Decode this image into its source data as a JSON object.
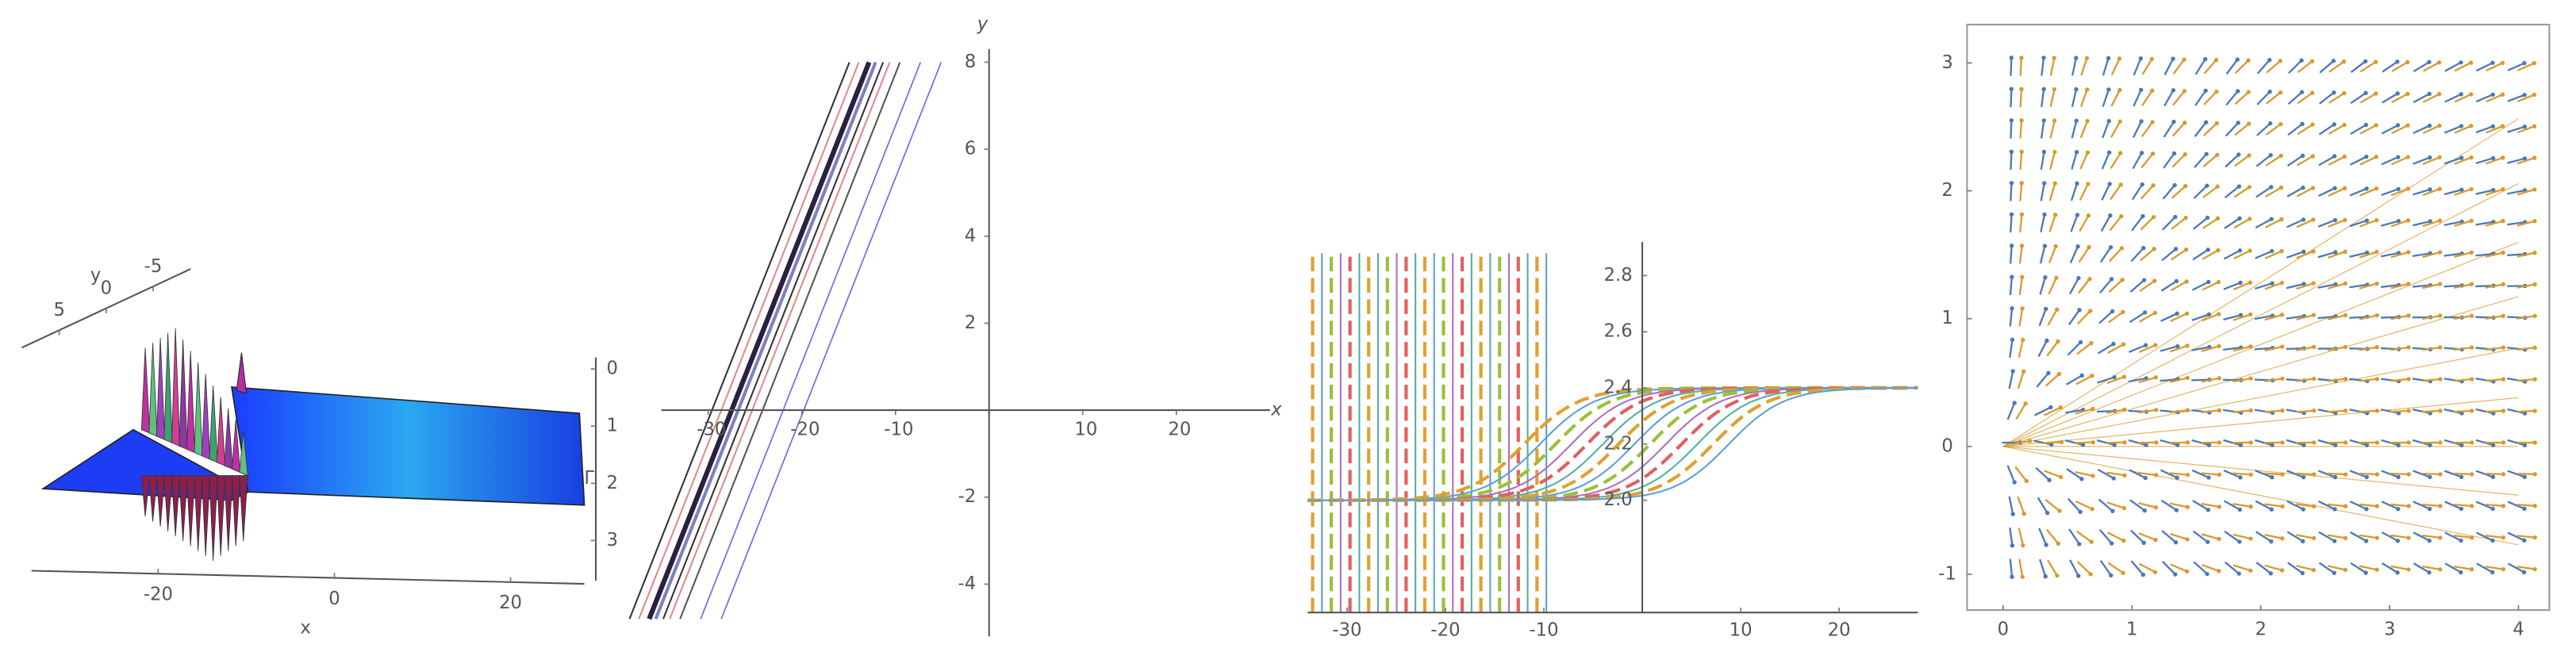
{
  "chart_data": [
    {
      "type": "surface3d",
      "xlabel": "x",
      "ylabel": "y",
      "zlabel": "Γ",
      "xlim": [
        -34,
        28
      ],
      "xticks": [
        -20,
        0,
        20
      ],
      "ylim": [
        9,
        -9
      ],
      "yticks": [
        5,
        0,
        -5
      ],
      "zlim": [
        -0.2,
        3.7
      ],
      "zticks": [
        0,
        1,
        2,
        3
      ]
    },
    {
      "type": "lines",
      "xlabel": "x",
      "ylabel": "y",
      "xlim": [
        -35,
        30
      ],
      "xticks": [
        -30,
        -20,
        -10,
        10,
        20
      ],
      "ylim": [
        -5.2,
        8.3
      ],
      "yticks": [
        -4,
        -2,
        2,
        4,
        6,
        8
      ]
    },
    {
      "type": "curves",
      "xlim": [
        -34,
        28
      ],
      "xticks": [
        -30,
        -20,
        -10,
        10,
        20
      ],
      "ylim": [
        1.6,
        2.92
      ],
      "yticks": [
        {
          "value": 2,
          "label": "2.0"
        },
        2.2,
        2.4,
        2.6,
        2.8
      ],
      "colors": [
        "#e0a030",
        "#5aa0d8",
        "#9bbf3a",
        "#b06ec0",
        "#e06060",
        "#50b0a0"
      ]
    },
    {
      "type": "vector_field",
      "xlim": [
        -0.28,
        4.24
      ],
      "xticks": [
        0,
        1,
        2,
        3,
        4
      ],
      "ylim": [
        -1.28,
        3.3
      ],
      "yticks": [
        -1,
        0,
        1,
        2,
        3
      ],
      "colors": [
        "#4a78b5",
        "#d99a2b"
      ]
    }
  ]
}
